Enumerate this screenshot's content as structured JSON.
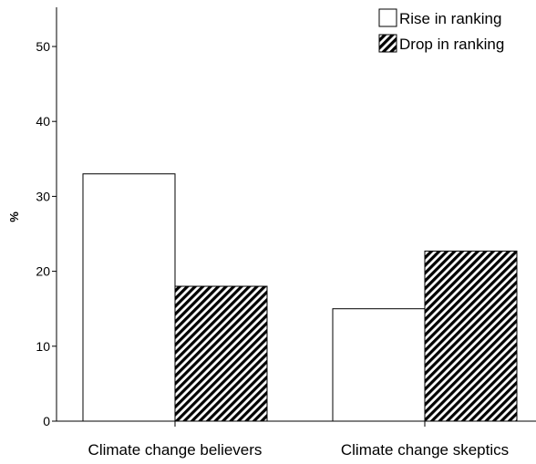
{
  "chart_data": {
    "type": "bar",
    "title": "",
    "xlabel": "",
    "ylabel": "%",
    "ylim": [
      0,
      55
    ],
    "yticks": [
      0,
      10,
      20,
      30,
      40,
      50
    ],
    "categories": [
      "Climate change believers",
      "Climate change skeptics"
    ],
    "series": [
      {
        "name": "Rise in ranking",
        "values": [
          33,
          15
        ],
        "fill": "white"
      },
      {
        "name": "Drop in ranking",
        "values": [
          18,
          22.7
        ],
        "fill": "hatched"
      }
    ],
    "legend": "top-right",
    "grid": false
  },
  "colors": {
    "bar_outline": "#000000",
    "hatch": "#000000",
    "background": "#ffffff"
  }
}
